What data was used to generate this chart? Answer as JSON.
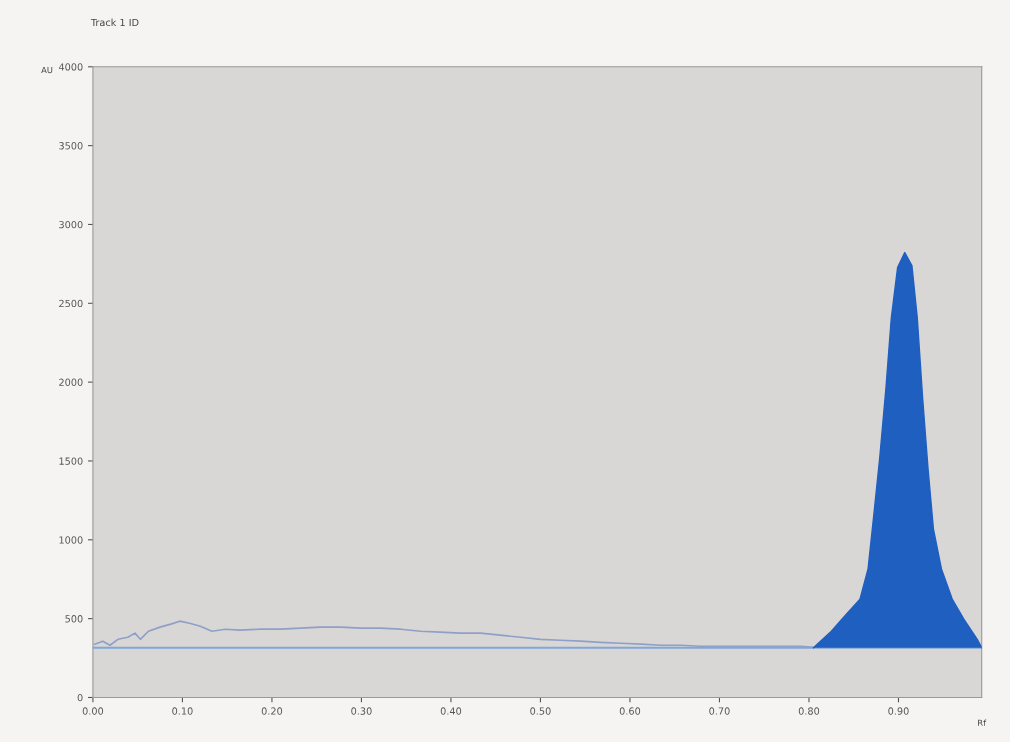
{
  "chart_data": {
    "type": "line",
    "title": "Track 1 ID",
    "xlabel": "Rf",
    "ylabel": "AU",
    "xlim": [
      0,
      0.993
    ],
    "ylim": [
      0,
      4000
    ],
    "xticks": [
      {
        "value": 0,
        "label": "0.00"
      },
      {
        "value": 0.1,
        "label": "0.10"
      },
      {
        "value": 0.2,
        "label": "0.20"
      },
      {
        "value": 0.3,
        "label": "0.30"
      },
      {
        "value": 0.4,
        "label": "0.40"
      },
      {
        "value": 0.5,
        "label": "0.50"
      },
      {
        "value": 0.6,
        "label": "0.60"
      },
      {
        "value": 0.7,
        "label": "0.70"
      },
      {
        "value": 0.8,
        "label": "0.80"
      },
      {
        "value": 0.9,
        "label": "0.90"
      }
    ],
    "yticks": [
      0,
      500,
      1000,
      1500,
      2000,
      2500,
      3000,
      3500,
      4000
    ],
    "grid": false,
    "legend": false,
    "marker": "none",
    "line_style": "solid",
    "ref_lines": [
      {
        "axis": "y",
        "value": 315,
        "label": null,
        "color": "#7fa8d8"
      }
    ],
    "series": [
      {
        "color": "#8fa0c8",
        "x": [
          0.002,
          0.011,
          0.019,
          0.028,
          0.039,
          0.047,
          0.053,
          0.062,
          0.075,
          0.087,
          0.097,
          0.108,
          0.12,
          0.133,
          0.148,
          0.164,
          0.187,
          0.21,
          0.232,
          0.254,
          0.277,
          0.299,
          0.321,
          0.344,
          0.366,
          0.388,
          0.41,
          0.433,
          0.455,
          0.478,
          0.5,
          0.522,
          0.545,
          0.567,
          0.59,
          0.612,
          0.635,
          0.657,
          0.679,
          0.702,
          0.724,
          0.746,
          0.769,
          0.791,
          0.805
        ],
        "values": [
          338,
          357,
          331,
          369,
          382,
          408,
          369,
          420,
          446,
          465,
          484,
          471,
          452,
          420,
          433,
          427,
          433,
          433,
          440,
          446,
          446,
          440,
          440,
          433,
          420,
          414,
          408,
          408,
          395,
          382,
          369,
          363,
          357,
          350,
          344,
          338,
          331,
          331,
          325,
          325,
          325,
          325,
          325,
          325,
          318
        ]
      },
      {
        "type": "area",
        "color": "#1f5fc0",
        "x": [
          0.805,
          0.825,
          0.842,
          0.857,
          0.866,
          0.872,
          0.879,
          0.886,
          0.892,
          0.899,
          0.907,
          0.915,
          0.921,
          0.927,
          0.933,
          0.939,
          0.948,
          0.96,
          0.973,
          0.988,
          0.993
        ],
        "values": [
          315,
          420,
          529,
          624,
          815,
          1134,
          1516,
          1962,
          2408,
          2726,
          2822,
          2739,
          2408,
          1898,
          1452,
          1070,
          815,
          624,
          497,
          369,
          315
        ]
      }
    ]
  }
}
